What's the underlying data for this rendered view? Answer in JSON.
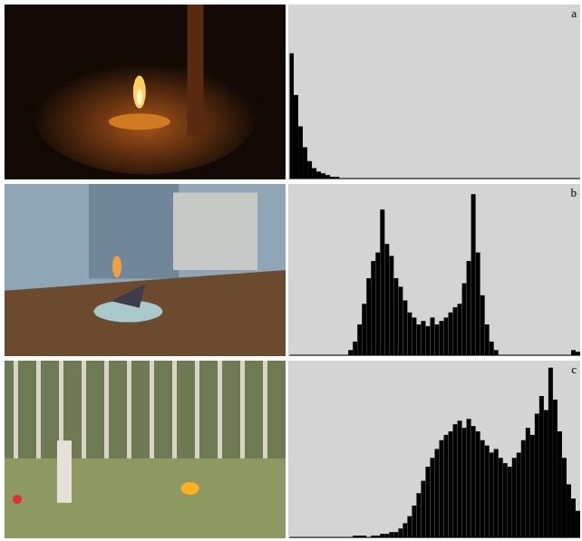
{
  "chart_data": [
    {
      "type": "histogram",
      "title": "a",
      "color": "#000000",
      "tick_labels": false,
      "xlim": [
        0,
        256
      ],
      "ylim": [
        0,
        100
      ],
      "bins": [
        0,
        4,
        8,
        12,
        16,
        20,
        24,
        28,
        32,
        36,
        40,
        44,
        48,
        52,
        56,
        60,
        64,
        68,
        72,
        76,
        80,
        84,
        88,
        92,
        96,
        100,
        104,
        108,
        112,
        116,
        120,
        124,
        128,
        132,
        136,
        140,
        144,
        148,
        152,
        156,
        160,
        164,
        168,
        172,
        176,
        180,
        184,
        188,
        192,
        196,
        200,
        204,
        208,
        212,
        216,
        220,
        224,
        228,
        232,
        236,
        240,
        244,
        248,
        252,
        256
      ],
      "counts": [
        72,
        48,
        30,
        18,
        10,
        6,
        4,
        3,
        2,
        1,
        1,
        0,
        0,
        0,
        0,
        0,
        0,
        0,
        0,
        0,
        0,
        0,
        0,
        0,
        0,
        0,
        0,
        0,
        0,
        0,
        0,
        0,
        0,
        0,
        0,
        0,
        0,
        0,
        0,
        0,
        0,
        0,
        0,
        0,
        0,
        0,
        0,
        0,
        0,
        0,
        0,
        0,
        0,
        0,
        0,
        0,
        0,
        0,
        0,
        0,
        0,
        0,
        0,
        0
      ]
    },
    {
      "type": "histogram",
      "title": "b",
      "color": "#000000",
      "tick_labels": false,
      "xlim": [
        0,
        256
      ],
      "ylim": [
        0,
        100
      ],
      "bins": [
        0,
        4,
        8,
        12,
        16,
        20,
        24,
        28,
        32,
        36,
        40,
        44,
        48,
        52,
        56,
        60,
        64,
        68,
        72,
        76,
        80,
        84,
        88,
        92,
        96,
        100,
        104,
        108,
        112,
        116,
        120,
        124,
        128,
        132,
        136,
        140,
        144,
        148,
        152,
        156,
        160,
        164,
        168,
        172,
        176,
        180,
        184,
        188,
        192,
        196,
        200,
        204,
        208,
        212,
        216,
        220,
        224,
        228,
        232,
        236,
        240,
        244,
        248,
        252,
        256
      ],
      "counts": [
        0,
        0,
        0,
        0,
        0,
        0,
        0,
        0,
        0,
        0,
        0,
        0,
        0,
        3,
        8,
        18,
        30,
        45,
        55,
        60,
        85,
        65,
        58,
        45,
        40,
        32,
        25,
        22,
        18,
        20,
        17,
        22,
        18,
        20,
        22,
        25,
        28,
        30,
        42,
        55,
        94,
        60,
        35,
        18,
        8,
        3,
        0,
        0,
        0,
        0,
        0,
        0,
        0,
        0,
        0,
        0,
        0,
        0,
        0,
        0,
        0,
        0,
        3,
        2
      ]
    },
    {
      "type": "histogram",
      "title": "c",
      "color": "#000000",
      "tick_labels": false,
      "xlim": [
        0,
        256
      ],
      "ylim": [
        0,
        100
      ],
      "bins": [
        0,
        4,
        8,
        12,
        16,
        20,
        24,
        28,
        32,
        36,
        40,
        44,
        48,
        52,
        56,
        60,
        64,
        68,
        72,
        76,
        80,
        84,
        88,
        92,
        96,
        100,
        104,
        108,
        112,
        116,
        120,
        124,
        128,
        132,
        136,
        140,
        144,
        148,
        152,
        156,
        160,
        164,
        168,
        172,
        176,
        180,
        184,
        188,
        192,
        196,
        200,
        204,
        208,
        212,
        216,
        220,
        224,
        228,
        232,
        236,
        240,
        244,
        248,
        252,
        256
      ],
      "counts": [
        0,
        0,
        0,
        0,
        0,
        0,
        0,
        0,
        0,
        0,
        0,
        0,
        0,
        0,
        1,
        1,
        1,
        0,
        1,
        1,
        2,
        2,
        3,
        3,
        5,
        8,
        12,
        18,
        25,
        32,
        40,
        45,
        50,
        55,
        58,
        60,
        64,
        66,
        62,
        67,
        63,
        60,
        55,
        52,
        48,
        50,
        45,
        42,
        40,
        45,
        48,
        55,
        62,
        58,
        70,
        80,
        72,
        96,
        78,
        60,
        45,
        30,
        22,
        15
      ]
    }
  ]
}
